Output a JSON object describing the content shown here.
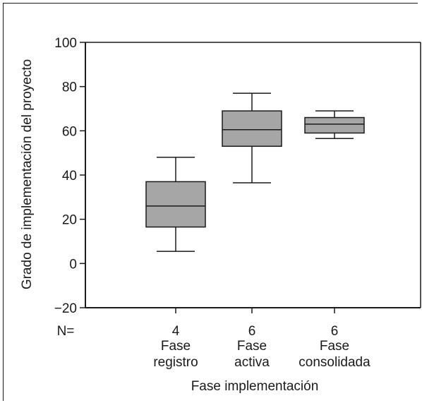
{
  "chart_data": {
    "type": "boxplot",
    "title": "",
    "xlabel": "Fase implementación",
    "ylabel": "Grado de implementación del proyecto",
    "ylim": [
      -20,
      100
    ],
    "yticks": [
      -20,
      0,
      20,
      40,
      60,
      80,
      100
    ],
    "n_label": "N=",
    "categories": [
      {
        "n": "4",
        "line1": "Fase",
        "line2": "registro"
      },
      {
        "n": "6",
        "line1": "Fase",
        "line2": "activa"
      },
      {
        "n": "6",
        "line1": "Fase",
        "line2": "consolidada"
      }
    ],
    "boxes": [
      {
        "whisker_low": 5.5,
        "q1": 16.5,
        "median": 26,
        "q3": 37,
        "whisker_high": 48
      },
      {
        "whisker_low": 36.5,
        "q1": 53,
        "median": 60.5,
        "q3": 69,
        "whisker_high": 77
      },
      {
        "whisker_low": 56.5,
        "q1": 59,
        "median": 63,
        "q3": 66,
        "whisker_high": 69
      }
    ],
    "box_fill": "#a6a6a6",
    "ink_color": "#1a1a1a",
    "grid": false,
    "legend": false
  }
}
